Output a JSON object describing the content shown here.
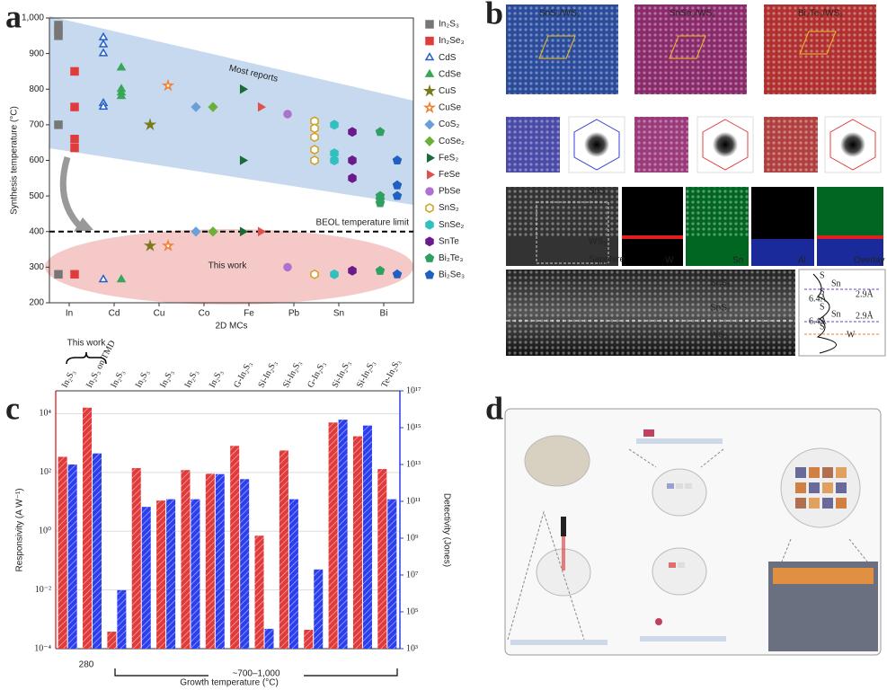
{
  "chart_data": [
    {
      "type": "scatter",
      "label": "a",
      "ylabel": "Synthesis temperature (°C)",
      "xlabel": "2D MCs",
      "xlim": [
        0.56,
        8.66
      ],
      "xticks": [
        {
          "value": 1,
          "label": "In"
        },
        {
          "value": 2,
          "label": "Cd"
        },
        {
          "value": 3,
          "label": "Cu"
        },
        {
          "value": 4,
          "label": "Co"
        },
        {
          "value": 5,
          "label": "Fe"
        },
        {
          "value": 6,
          "label": "Pb"
        },
        {
          "value": 7,
          "label": "Sn"
        },
        {
          "value": 8,
          "label": "Bi"
        }
      ],
      "ylim": [
        200,
        1000
      ],
      "yticks": [
        200,
        300,
        400,
        500,
        600,
        700,
        800,
        900,
        {
          "value": 1000,
          "label": "1,000"
        }
      ],
      "legend": "right",
      "limit_line": 400,
      "annotations": {
        "most_reports": "Most reports",
        "this_work": "This work",
        "limit": "BEOL temperature limit"
      },
      "series": [
        {
          "name": "In₂S₃",
          "color": "#777777",
          "marker": "square",
          "x": [
            0.76,
            0.76,
            0.76,
            0.76,
            0.76
          ],
          "values": [
            980,
            965,
            950,
            700,
            280
          ]
        },
        {
          "name": "In₂Se₃",
          "color": "#e03c3c",
          "marker": "square",
          "x": [
            1.12,
            1.12,
            1.12,
            1.12,
            1.12
          ],
          "values": [
            850,
            750,
            660,
            635,
            280
          ]
        },
        {
          "name": "CdS",
          "color": "#1f5fc9",
          "marker": "triangle-open",
          "x": [
            1.76,
            1.76,
            1.76,
            1.76,
            1.76,
            1.76
          ],
          "values": [
            945,
            925,
            900,
            760,
            750,
            265
          ]
        },
        {
          "name": "CdSe",
          "color": "#3aa65a",
          "marker": "triangle",
          "x": [
            2.16,
            2.16,
            2.16,
            2.16,
            2.16
          ],
          "values": [
            860,
            800,
            790,
            780,
            265
          ]
        },
        {
          "name": "CuS",
          "color": "#7a7a1a",
          "marker": "star",
          "x": [
            2.8,
            2.8
          ],
          "values": [
            700,
            360
          ]
        },
        {
          "name": "CuSe",
          "color": "#f08030",
          "marker": "star-open",
          "x": [
            3.2,
            3.2
          ],
          "values": [
            810,
            360
          ]
        },
        {
          "name": "CoS₂",
          "color": "#6aa0d8",
          "marker": "diamond",
          "x": [
            3.82,
            3.82
          ],
          "values": [
            750,
            400
          ]
        },
        {
          "name": "CoSe₂",
          "color": "#6ab03a",
          "marker": "diamond",
          "x": [
            4.2,
            4.2
          ],
          "values": [
            750,
            400
          ]
        },
        {
          "name": "FeS₂",
          "color": "#1a6a3a",
          "marker": "triangle-right",
          "x": [
            4.86,
            4.86,
            4.86
          ],
          "values": [
            800,
            600,
            400
          ]
        },
        {
          "name": "FeSe",
          "color": "#e05050",
          "marker": "triangle-right",
          "x": [
            5.26,
            5.26
          ],
          "values": [
            750,
            400
          ]
        },
        {
          "name": "PbSe",
          "color": "#b070d0",
          "marker": "circle",
          "x": [
            5.86,
            5.86
          ],
          "values": [
            730,
            300
          ]
        },
        {
          "name": "SnS₂",
          "color": "#d0a020",
          "marker": "hexagon-open",
          "x": [
            6.46,
            6.46,
            6.46,
            6.46,
            6.46,
            6.46
          ],
          "values": [
            710,
            690,
            665,
            630,
            600,
            280
          ]
        },
        {
          "name": "SnSe₂",
          "color": "#30c0c0",
          "marker": "hexagon",
          "x": [
            6.9,
            6.9,
            6.9,
            6.9
          ],
          "values": [
            700,
            620,
            600,
            280
          ]
        },
        {
          "name": "SnTe",
          "color": "#6a1a8a",
          "marker": "hexagon",
          "x": [
            7.3,
            7.3,
            7.3,
            7.3
          ],
          "values": [
            680,
            600,
            550,
            290
          ]
        },
        {
          "name": "Bi₂Te₃",
          "color": "#30a060",
          "marker": "pentagon",
          "x": [
            7.92,
            7.92,
            7.92,
            7.92,
            7.92
          ],
          "values": [
            680,
            500,
            490,
            480,
            290
          ]
        },
        {
          "name": "Bi₂Se₃",
          "color": "#2060c0",
          "marker": "pentagon",
          "x": [
            8.3,
            8.3,
            8.3,
            8.3
          ],
          "values": [
            600,
            530,
            500,
            280
          ]
        }
      ]
    },
    {
      "type": "bar",
      "label": "c",
      "log_scale": true,
      "grid": true,
      "categories": [
        "In₂S₃",
        "In₂S₃ on TMD",
        "In₂S₃",
        "In₂S₃",
        "In₂S₃",
        "In₂S₃",
        "In₂S₃",
        "G-In₂S₃",
        "Si-In₂S₃",
        "Si-In₂S₃",
        "G-In₂S₃",
        "Si-In₂S₃",
        "Si-In₂S₃",
        "Te-In₂S₃"
      ],
      "ylabel": "Responsivity (A W⁻¹)",
      "y2label": "Detectivity (Jones)",
      "xlabel": "Growth temperature (°C)",
      "ylim": [
        0.0001,
        60000
      ],
      "yticks": [
        {
          "value": 0.0001,
          "label": "10⁻⁴"
        },
        {
          "value": 0.01,
          "label": "10⁻²"
        },
        {
          "value": 1,
          "label": "10⁰"
        },
        {
          "value": 100,
          "label": "10²"
        },
        {
          "value": 10000,
          "label": "10⁴"
        }
      ],
      "y2lim": [
        1000,
        1e+17
      ],
      "y2ticks": [
        {
          "value": 1000,
          "label": "10³"
        },
        {
          "value": 100000,
          "label": "10⁵"
        },
        {
          "value": 10000000,
          "label": "10⁷"
        },
        {
          "value": 1000000000,
          "label": "10⁹"
        },
        {
          "value": 100000000000,
          "label": "10¹¹"
        },
        {
          "value": 10000000000000,
          "label": "10¹³"
        },
        {
          "value": 1000000000000000,
          "label": "10¹⁵"
        },
        {
          "value": 1e+17,
          "label": "10¹⁷"
        }
      ],
      "annotations": {
        "this_work": "This work",
        "low_temp": "280",
        "high_temp": "~700–1,000"
      },
      "series": [
        {
          "color": "#e23a3a",
          "values": [
            340,
            16000,
            0.00038,
            140,
            11,
            120,
            90,
            800,
            0.7,
            560,
            0.00044,
            5000,
            1700,
            130
          ]
        },
        {
          "color": "#2b3ff0",
          "axis": "y2",
          "values": [
            10000000000000,
            40000000000000,
            1500000,
            50000000000,
            130000000000,
            130000000000,
            3000000000000,
            1600000000000,
            12000,
            130000000000,
            20000000,
            2700000000000000,
            1300000000000000,
            130000000000
          ]
        }
      ]
    }
  ],
  "panel_b": {
    "label": "b",
    "headers": [
      "SnS₂/WS₂",
      "SnSe₂/WS₂",
      "Bi₂Te₃/WS₂"
    ],
    "eds": [
      "SnS₂",
      "WS₂",
      "Sapphire",
      "W",
      "Sn",
      "Al",
      "Overlay"
    ],
    "stem": [
      "SnS₂",
      "SnS₂",
      "WS₂"
    ],
    "profile": [
      "S",
      "Sn",
      "S",
      "S",
      "Sn",
      "S",
      "S",
      "W",
      "6.4Å",
      "6.4Å",
      "2.9Å",
      "2.9Å"
    ]
  },
  "panel_d": {
    "label": "d"
  }
}
